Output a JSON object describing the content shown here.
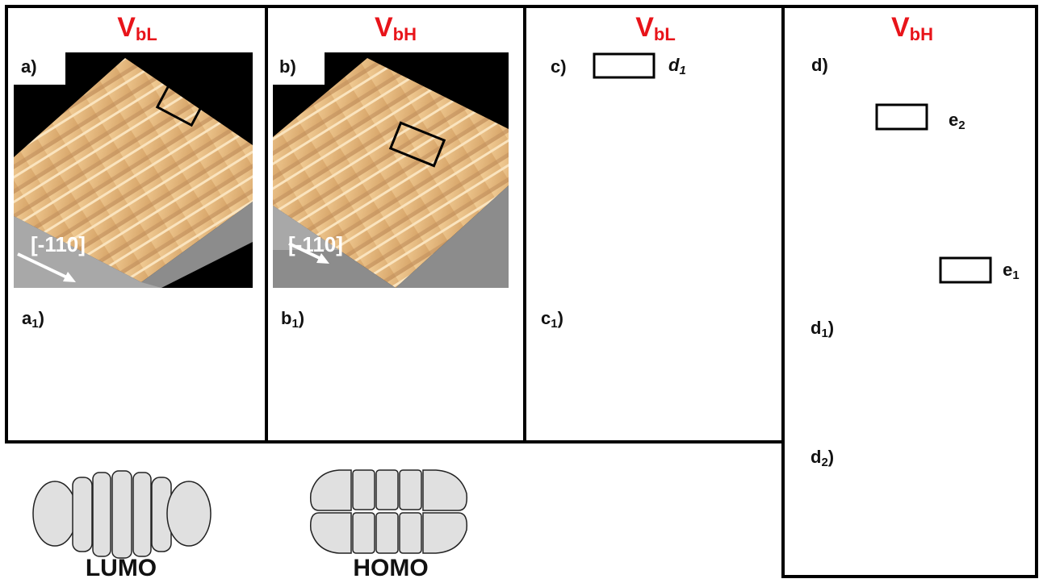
{
  "panels": [
    {
      "title": {
        "main": "V",
        "sub": "bL"
      },
      "label": "a)",
      "direction": "[-110]",
      "sub_images": [
        {
          "main": "a",
          "sub": "1",
          "close": ")"
        }
      ]
    },
    {
      "title": {
        "main": "V",
        "sub": "bH"
      },
      "label": "b)",
      "direction": "[-110]",
      "sub_images": [
        {
          "main": "b",
          "sub": "1",
          "close": ")"
        }
      ]
    },
    {
      "title": {
        "main": "V",
        "sub": "bL"
      },
      "label": "c)",
      "markers": [
        {
          "main": "d",
          "sub": "1"
        }
      ],
      "sub_images": [
        {
          "main": "c",
          "sub": "1",
          "close": ")"
        }
      ]
    },
    {
      "title": {
        "main": "V",
        "sub": "bH"
      },
      "label": "d)",
      "markers": [
        {
          "main": "e",
          "sub": "2"
        },
        {
          "main": "e",
          "sub": "1"
        }
      ],
      "sub_images": [
        {
          "main": "d",
          "sub": "1",
          "close": ")"
        },
        {
          "main": "d",
          "sub": "2",
          "close": ")"
        }
      ]
    }
  ],
  "orbitals": [
    "LUMO",
    "HOMO"
  ]
}
